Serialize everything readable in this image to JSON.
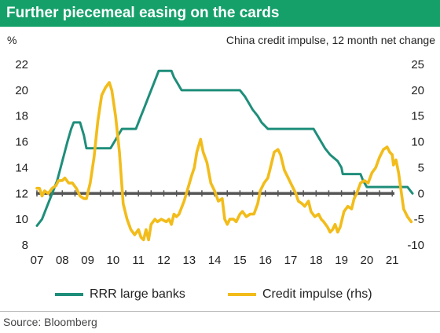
{
  "title": "Further piecemeal easing on the cards",
  "left_axis_unit": "%",
  "right_axis_title": "China credit impulse, 12 month net change",
  "source": "Source: Bloomberg",
  "colors": {
    "title_bg": "#15A06A",
    "rrr": "#1E8E7A",
    "impulse": "#F2BC1A",
    "zero_line": "#555555"
  },
  "chart_data": {
    "type": "line",
    "x_ticks": [
      "07",
      "08",
      "09",
      "10",
      "11",
      "12",
      "13",
      "14",
      "15",
      "16",
      "17",
      "18",
      "19",
      "20",
      "21"
    ],
    "x_range": [
      2007,
      2021.9
    ],
    "y_left": {
      "min": 8,
      "max": 22,
      "ticks": [
        8,
        10,
        12,
        14,
        16,
        18,
        20,
        22
      ]
    },
    "y_right": {
      "min": -10,
      "max": 25,
      "ticks": [
        -10,
        -5,
        0,
        5,
        10,
        15,
        20,
        25
      ]
    },
    "zero_line_value_rhs": 0,
    "legend_position": "bottom",
    "series": [
      {
        "name": "RRR large banks",
        "axis": "left",
        "color": "#1E8E7A",
        "points": [
          [
            2007.0,
            9.5
          ],
          [
            2007.2,
            10.0
          ],
          [
            2007.4,
            11.0
          ],
          [
            2007.6,
            12.0
          ],
          [
            2007.8,
            13.0
          ],
          [
            2008.0,
            14.5
          ],
          [
            2008.2,
            16.0
          ],
          [
            2008.35,
            17.0
          ],
          [
            2008.45,
            17.5
          ],
          [
            2008.7,
            17.5
          ],
          [
            2008.85,
            16.5
          ],
          [
            2008.95,
            15.5
          ],
          [
            2009.9,
            15.5
          ],
          [
            2010.05,
            16.0
          ],
          [
            2010.2,
            16.5
          ],
          [
            2010.35,
            17.0
          ],
          [
            2010.9,
            17.0
          ],
          [
            2011.0,
            17.5
          ],
          [
            2011.1,
            18.0
          ],
          [
            2011.2,
            18.5
          ],
          [
            2011.3,
            19.0
          ],
          [
            2011.4,
            19.5
          ],
          [
            2011.5,
            20.0
          ],
          [
            2011.6,
            20.5
          ],
          [
            2011.7,
            21.0
          ],
          [
            2011.8,
            21.5
          ],
          [
            2012.3,
            21.5
          ],
          [
            2012.4,
            21.0
          ],
          [
            2012.55,
            20.5
          ],
          [
            2012.7,
            20.0
          ],
          [
            2015.0,
            20.0
          ],
          [
            2015.2,
            19.5
          ],
          [
            2015.35,
            19.0
          ],
          [
            2015.5,
            18.5
          ],
          [
            2015.7,
            18.0
          ],
          [
            2015.85,
            17.5
          ],
          [
            2016.1,
            17.0
          ],
          [
            2017.9,
            17.0
          ],
          [
            2018.2,
            16.0
          ],
          [
            2018.35,
            15.5
          ],
          [
            2018.55,
            15.0
          ],
          [
            2018.85,
            14.5
          ],
          [
            2019.0,
            14.0
          ],
          [
            2019.05,
            13.5
          ],
          [
            2019.75,
            13.5
          ],
          [
            2019.85,
            13.0
          ],
          [
            2020.0,
            12.5
          ],
          [
            2021.6,
            12.5
          ],
          [
            2021.8,
            12.0
          ]
        ]
      },
      {
        "name": "Credit impulse (rhs)",
        "axis": "right",
        "color": "#F2BC1A",
        "points": [
          [
            2007.0,
            1.0
          ],
          [
            2007.1,
            1.0
          ],
          [
            2007.2,
            -0.5
          ],
          [
            2007.3,
            0.5
          ],
          [
            2007.45,
            0.0
          ],
          [
            2007.6,
            1.0
          ],
          [
            2007.75,
            1.5
          ],
          [
            2007.85,
            2.5
          ],
          [
            2008.0,
            2.5
          ],
          [
            2008.1,
            3.0
          ],
          [
            2008.25,
            2.0
          ],
          [
            2008.4,
            2.0
          ],
          [
            2008.55,
            1.0
          ],
          [
            2008.7,
            -0.5
          ],
          [
            2008.85,
            -1.0
          ],
          [
            2008.95,
            -1.0
          ],
          [
            2009.1,
            2.0
          ],
          [
            2009.25,
            7.0
          ],
          [
            2009.4,
            14.0
          ],
          [
            2009.55,
            19.0
          ],
          [
            2009.7,
            20.5
          ],
          [
            2009.85,
            21.5
          ],
          [
            2009.95,
            20.0
          ],
          [
            2010.1,
            15.0
          ],
          [
            2010.25,
            8.0
          ],
          [
            2010.4,
            -2.0
          ],
          [
            2010.55,
            -5.0
          ],
          [
            2010.7,
            -7.0
          ],
          [
            2010.85,
            -8.0
          ],
          [
            2011.0,
            -7.0
          ],
          [
            2011.1,
            -8.5
          ],
          [
            2011.2,
            -9.0
          ],
          [
            2011.3,
            -7.0
          ],
          [
            2011.4,
            -9.0
          ],
          [
            2011.5,
            -6.0
          ],
          [
            2011.65,
            -5.0
          ],
          [
            2011.75,
            -5.5
          ],
          [
            2011.9,
            -5.0
          ],
          [
            2012.1,
            -5.5
          ],
          [
            2012.2,
            -5.0
          ],
          [
            2012.3,
            -6.0
          ],
          [
            2012.4,
            -4.0
          ],
          [
            2012.5,
            -4.5
          ],
          [
            2012.6,
            -4.0
          ],
          [
            2012.8,
            -1.5
          ],
          [
            2012.95,
            1.0
          ],
          [
            2013.1,
            3.5
          ],
          [
            2013.2,
            5.0
          ],
          [
            2013.3,
            8.0
          ],
          [
            2013.45,
            10.5
          ],
          [
            2013.55,
            8.0
          ],
          [
            2013.7,
            6.0
          ],
          [
            2013.85,
            2.0
          ],
          [
            2014.0,
            0.5
          ],
          [
            2014.15,
            -1.5
          ],
          [
            2014.3,
            -1.0
          ],
          [
            2014.4,
            -5.0
          ],
          [
            2014.5,
            -6.0
          ],
          [
            2014.6,
            -5.0
          ],
          [
            2014.75,
            -5.0
          ],
          [
            2014.85,
            -5.5
          ],
          [
            2015.0,
            -4.0
          ],
          [
            2015.1,
            -3.5
          ],
          [
            2015.25,
            -4.5
          ],
          [
            2015.4,
            -4.0
          ],
          [
            2015.55,
            -4.0
          ],
          [
            2015.7,
            -2.0
          ],
          [
            2015.8,
            0.5
          ],
          [
            2015.95,
            2.0
          ],
          [
            2016.1,
            3.0
          ],
          [
            2016.2,
            5.0
          ],
          [
            2016.35,
            8.0
          ],
          [
            2016.5,
            8.5
          ],
          [
            2016.6,
            7.5
          ],
          [
            2016.75,
            4.5
          ],
          [
            2016.85,
            3.5
          ],
          [
            2016.95,
            2.5
          ],
          [
            2017.05,
            1.5
          ],
          [
            2017.2,
            0.0
          ],
          [
            2017.3,
            -1.5
          ],
          [
            2017.45,
            -2.0
          ],
          [
            2017.55,
            -2.5
          ],
          [
            2017.7,
            -1.5
          ],
          [
            2017.8,
            -3.5
          ],
          [
            2017.95,
            -4.5
          ],
          [
            2018.1,
            -4.0
          ],
          [
            2018.2,
            -5.0
          ],
          [
            2018.3,
            -5.5
          ],
          [
            2018.45,
            -6.5
          ],
          [
            2018.55,
            -7.5
          ],
          [
            2018.65,
            -7.0
          ],
          [
            2018.75,
            -6.0
          ],
          [
            2018.85,
            -7.5
          ],
          [
            2018.95,
            -6.5
          ],
          [
            2019.1,
            -3.5
          ],
          [
            2019.25,
            -2.5
          ],
          [
            2019.4,
            -3.0
          ],
          [
            2019.5,
            -1.0
          ],
          [
            2019.6,
            0.0
          ],
          [
            2019.75,
            2.0
          ],
          [
            2019.9,
            2.5
          ],
          [
            2020.05,
            2.0
          ],
          [
            2020.2,
            4.0
          ],
          [
            2020.35,
            5.0
          ],
          [
            2020.5,
            7.0
          ],
          [
            2020.65,
            8.5
          ],
          [
            2020.8,
            9.0
          ],
          [
            2020.9,
            8.0
          ],
          [
            2021.0,
            7.5
          ],
          [
            2021.05,
            5.5
          ],
          [
            2021.15,
            6.5
          ],
          [
            2021.25,
            4.0
          ],
          [
            2021.35,
            0.5
          ],
          [
            2021.45,
            -3.0
          ],
          [
            2021.6,
            -4.5
          ],
          [
            2021.75,
            -5.5
          ]
        ]
      }
    ]
  }
}
